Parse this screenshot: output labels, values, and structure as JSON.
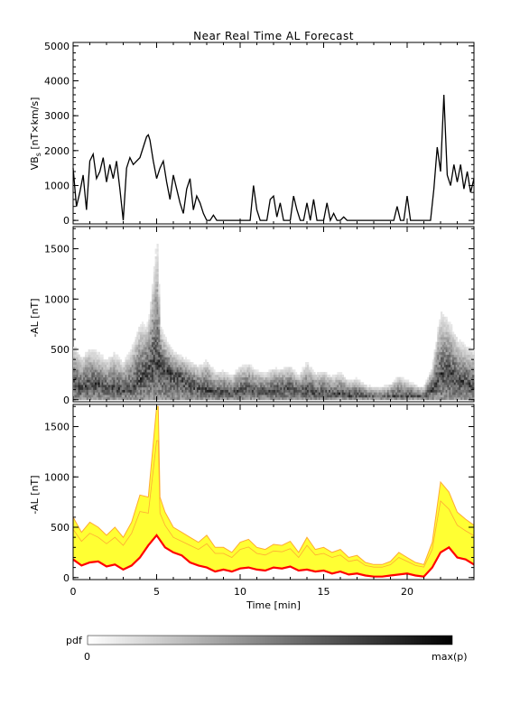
{
  "title": "Near Real Time AL Forecast",
  "chart_data": [
    {
      "type": "line",
      "panel": "top",
      "ylabel": "VB_s [nT×km/s]",
      "ylim": [
        -100,
        5100
      ],
      "xlim": [
        0,
        24
      ],
      "yticks": [
        "0",
        "1000",
        "2000",
        "3000",
        "4000",
        "5000"
      ],
      "series": [
        {
          "values_x": [
            0,
            0.2,
            0.4,
            0.6,
            0.8,
            1.0,
            1.2,
            1.4,
            1.6,
            1.8,
            2.0,
            2.2,
            2.4,
            2.6,
            2.8,
            3.0,
            3.2,
            3.4,
            3.6,
            3.8,
            4.0,
            4.2,
            4.4,
            4.5,
            4.6,
            4.8,
            5.0,
            5.2,
            5.4,
            5.6,
            5.8,
            6.0,
            6.2,
            6.4,
            6.6,
            6.8,
            7.0,
            7.2,
            7.4,
            7.6,
            7.8,
            8.0,
            8.2,
            8.4,
            8.6,
            8.8,
            9.0,
            9.2,
            9.4,
            9.6,
            9.8,
            10.0,
            10.2,
            10.4,
            10.6,
            10.8,
            11.0,
            11.2,
            11.4,
            11.6,
            11.8,
            12.0,
            12.2,
            12.4,
            12.6,
            12.8,
            13.0,
            13.2,
            13.4,
            13.6,
            13.8,
            14.0,
            14.2,
            14.4,
            14.6,
            14.8,
            15.0,
            15.2,
            15.4,
            15.6,
            15.8,
            16.0,
            16.2,
            16.4,
            16.6,
            16.8,
            17.0,
            17.2,
            17.4,
            17.6,
            17.8,
            18.0,
            18.2,
            18.4,
            18.6,
            18.8,
            19.0,
            19.2,
            19.4,
            19.6,
            19.8,
            20.0,
            20.2,
            20.4,
            20.6,
            20.8,
            21.0,
            21.2,
            21.4,
            21.6,
            21.8,
            22.0,
            22.2,
            22.4,
            22.6,
            22.8,
            23.0,
            23.2,
            23.4,
            23.6,
            23.8,
            24.0
          ],
          "values_y": [
            1500,
            400,
            800,
            1300,
            300,
            1700,
            1900,
            1200,
            1400,
            1800,
            1100,
            1600,
            1200,
            1700,
            900,
            0,
            1500,
            1800,
            1600,
            1700,
            1800,
            2100,
            2400,
            2450,
            2300,
            1700,
            1200,
            1500,
            1700,
            1100,
            600,
            1300,
            900,
            500,
            200,
            900,
            1200,
            300,
            700,
            500,
            200,
            0,
            0,
            150,
            0,
            0,
            0,
            0,
            0,
            0,
            0,
            0,
            0,
            0,
            0,
            1000,
            300,
            0,
            0,
            0,
            600,
            700,
            100,
            500,
            0,
            0,
            0,
            700,
            300,
            0,
            0,
            500,
            0,
            600,
            0,
            0,
            0,
            500,
            0,
            200,
            0,
            0,
            100,
            0,
            0,
            0,
            0,
            0,
            0,
            0,
            0,
            0,
            0,
            0,
            0,
            0,
            0,
            0,
            400,
            0,
            0,
            700,
            0,
            0,
            0,
            0,
            0,
            0,
            0,
            900,
            2100,
            1400,
            3600,
            1300,
            1000,
            1600,
            1100,
            1600,
            900,
            1400,
            800,
            1200
          ]
        }
      ]
    },
    {
      "type": "heatmap",
      "panel": "middle",
      "ylabel": "-AL [nT]",
      "ylim": [
        -20,
        1720
      ],
      "xlim": [
        0,
        24
      ],
      "yticks": [
        "0",
        "500",
        "1000",
        "1500"
      ],
      "description_values": "probability density of -AL per time bin, gray-scale from 0 to max(p)"
    },
    {
      "type": "area",
      "panel": "bottom",
      "ylabel": "-AL [nT]",
      "xlabel": "Time [min]",
      "ylim": [
        -20,
        1720
      ],
      "xlim": [
        0,
        24
      ],
      "yticks": [
        "0",
        "500",
        "1000",
        "1500"
      ],
      "xticks": [
        "0",
        "5",
        "10",
        "15",
        "20"
      ],
      "colors": {
        "band": "#ffff33",
        "band_edge": "#ffaa33",
        "median": "#ff0000"
      },
      "series": [
        {
          "name": "median",
          "values_x": [
            0,
            0.5,
            1.0,
            1.5,
            2.0,
            2.5,
            3.0,
            3.5,
            4.0,
            4.5,
            5.0,
            5.5,
            6.0,
            6.5,
            7.0,
            7.5,
            8.0,
            8.5,
            9.0,
            9.5,
            10.0,
            10.5,
            11.0,
            11.5,
            12.0,
            12.5,
            13.0,
            13.5,
            14.0,
            14.5,
            15.0,
            15.5,
            16.0,
            16.5,
            17.0,
            17.5,
            18.0,
            18.5,
            19.0,
            19.5,
            20.0,
            20.5,
            21.0,
            21.5,
            22.0,
            22.5,
            23.0,
            23.5,
            24.0
          ],
          "values_y": [
            180,
            120,
            150,
            160,
            110,
            130,
            80,
            120,
            200,
            320,
            420,
            300,
            250,
            220,
            150,
            120,
            100,
            60,
            80,
            60,
            90,
            100,
            80,
            70,
            100,
            90,
            110,
            70,
            80,
            60,
            70,
            40,
            60,
            30,
            40,
            20,
            10,
            10,
            20,
            30,
            40,
            20,
            10,
            100,
            250,
            300,
            200,
            180,
            130
          ]
        },
        {
          "name": "upper",
          "values_x": [
            0,
            0.5,
            1.0,
            1.5,
            2.0,
            2.5,
            3.0,
            3.5,
            4.0,
            4.5,
            5.0,
            5.1,
            5.2,
            5.5,
            6.0,
            6.5,
            7.0,
            7.5,
            8.0,
            8.5,
            9.0,
            9.5,
            10.0,
            10.5,
            11.0,
            11.5,
            12.0,
            12.5,
            13.0,
            13.5,
            14.0,
            14.5,
            15.0,
            15.5,
            16.0,
            16.5,
            17.0,
            17.5,
            18.0,
            18.5,
            19.0,
            19.5,
            20.0,
            20.5,
            21.0,
            21.5,
            22.0,
            22.5,
            23.0,
            23.5,
            24.0
          ],
          "values_y": [
            600,
            450,
            550,
            500,
            420,
            500,
            400,
            550,
            820,
            800,
            1700,
            1700,
            800,
            650,
            500,
            450,
            400,
            350,
            420,
            300,
            300,
            250,
            350,
            380,
            300,
            280,
            330,
            320,
            360,
            250,
            400,
            280,
            300,
            250,
            280,
            200,
            220,
            150,
            130,
            130,
            160,
            250,
            200,
            150,
            130,
            350,
            950,
            850,
            650,
            580,
            520
          ]
        }
      ]
    }
  ],
  "colorbar": {
    "label": "pdf",
    "min_label": "0",
    "max_label": "max(p)"
  }
}
